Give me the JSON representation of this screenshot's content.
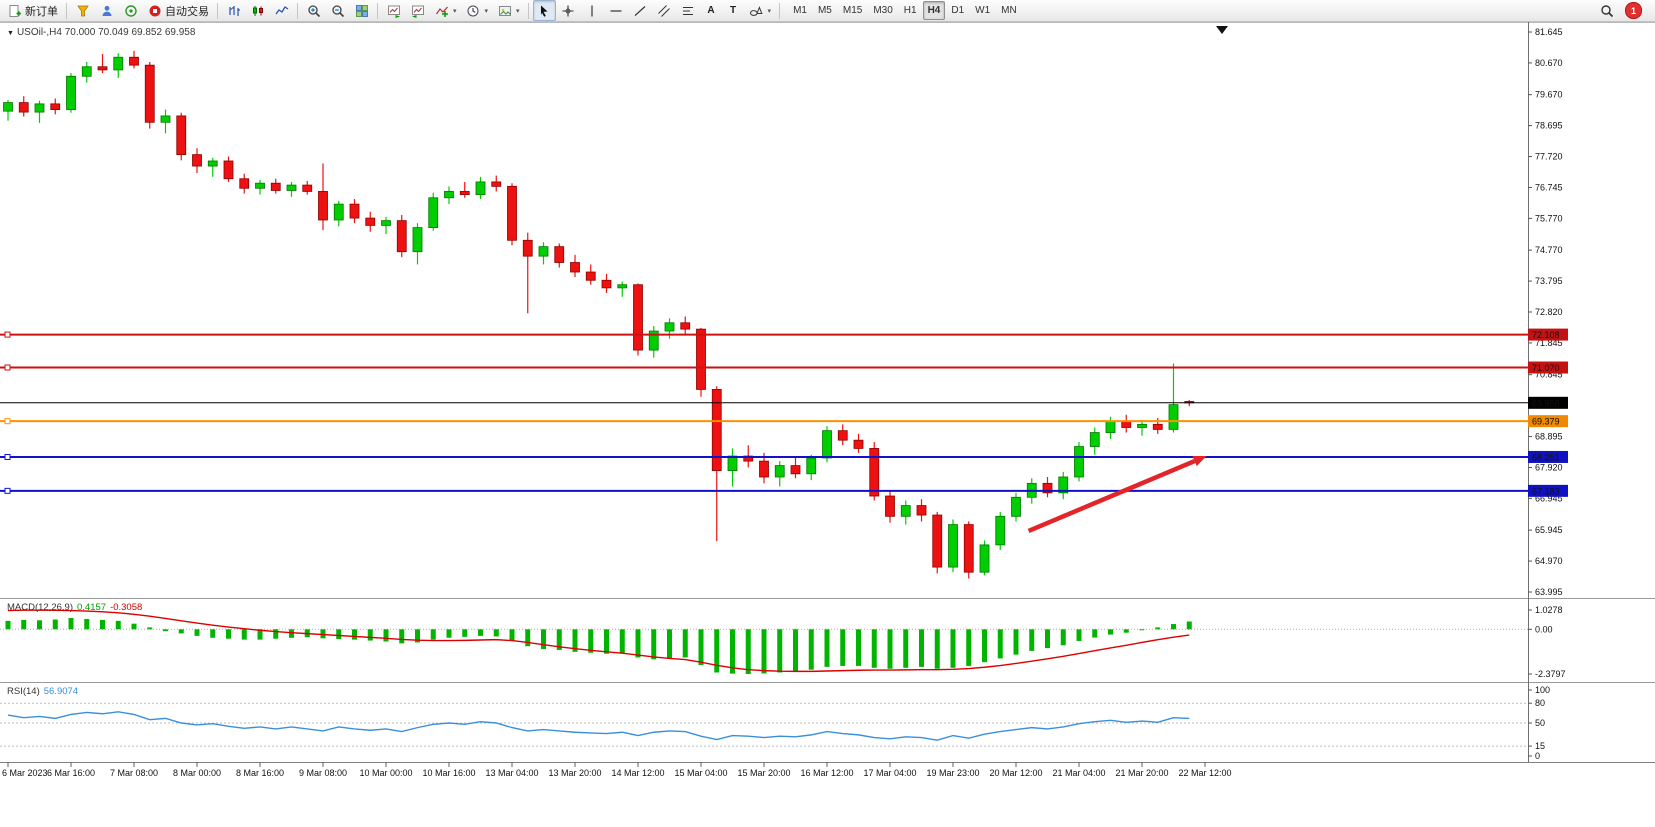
{
  "toolbar": {
    "new_order_label": "新订单",
    "auto_trading_label": "自动交易",
    "text_tool_label": "A",
    "label_tool_label": "T",
    "timeframes": [
      "M1",
      "M5",
      "M15",
      "M30",
      "H1",
      "H4",
      "D1",
      "W1",
      "MN"
    ],
    "active_timeframe": "H4",
    "notification_badge": "1",
    "icon_names": [
      "new-order",
      "funnel",
      "accounts",
      "community",
      "auto-trading",
      "bar-chart",
      "candlestick-chart",
      "line-chart",
      "zoom-in",
      "zoom-out",
      "tile-windows",
      "auto-scroll",
      "chart-shift",
      "indicators",
      "periods",
      "templates",
      "cursor",
      "crosshair",
      "vertical-line",
      "horizontal-line",
      "trendline",
      "equidistant-channel",
      "fibonacci",
      "text",
      "text-label",
      "shapes",
      "search",
      "notifications"
    ]
  },
  "chart": {
    "title": "USOil-,H4 70.000 70.049 69.852 69.958",
    "y_axis": {
      "max": 81.645,
      "min": 63.995
    },
    "price_axis_labels": [
      "81.645",
      "80.670",
      "79.670",
      "78.695",
      "77.720",
      "76.745",
      "75.770",
      "74.770",
      "73.795",
      "72.820",
      "71.845",
      "70.845",
      "68.895",
      "67.920",
      "66.945",
      "65.945",
      "64.970",
      "63.995"
    ],
    "time_axis_labels": [
      "6 Mar 2023",
      "6 Mar 16:00",
      "7 Mar 08:00",
      "8 Mar 00:00",
      "8 Mar 16:00",
      "9 Mar 08:00",
      "10 Mar 00:00",
      "10 Mar 16:00",
      "13 Mar 04:00",
      "13 Mar 20:00",
      "14 Mar 12:00",
      "15 Mar 04:00",
      "15 Mar 20:00",
      "16 Mar 12:00",
      "17 Mar 04:00",
      "19 Mar 23:00",
      "20 Mar 12:00",
      "21 Mar 04:00",
      "21 Mar 20:00",
      "22 Mar 12:00"
    ],
    "hlines": [
      {
        "price": 72.108,
        "label": "72.108",
        "color": "#cc1111",
        "badge": "#c41111",
        "width": 2
      },
      {
        "price": 71.07,
        "label": "71.070",
        "color": "#cc1111",
        "badge": "#c41111",
        "width": 2
      },
      {
        "price": 69.958,
        "label": "69.958",
        "color": "#000000",
        "badge": "#000000",
        "width": 1
      },
      {
        "price": 69.379,
        "label": "69.379",
        "color": "#ff9000",
        "badge": "#f08800",
        "width": 2
      },
      {
        "price": 68.251,
        "label": "68.251",
        "color": "#1111cc",
        "badge": "#1111c4",
        "width": 2
      },
      {
        "price": 67.183,
        "label": "67.183",
        "color": "#1111cc",
        "badge": "#1111c4",
        "width": 2
      }
    ]
  },
  "chart_data": {
    "type": "candlestick",
    "symbol": "USOil-",
    "period": "H4",
    "title": "USOil-,H4",
    "ohlc_current": {
      "open": "70.000",
      "high": "70.049",
      "low": "69.852",
      "close": "69.958"
    },
    "x_label_step": 4,
    "colors": {
      "up": "#00ce00",
      "up_stroke": "#007800",
      "down": "#ee1111",
      "down_stroke": "#8e0000",
      "macd_hist": "#00b400",
      "macd_signal": "#dd0000",
      "rsi_line": "#3a8fdd",
      "arrow": "#e32428"
    },
    "candles": [
      [
        79.15,
        79.5,
        78.85,
        79.42
      ],
      [
        79.42,
        79.62,
        78.98,
        79.12
      ],
      [
        79.12,
        79.48,
        78.78,
        79.38
      ],
      [
        79.38,
        79.55,
        79.05,
        79.2
      ],
      [
        79.2,
        80.35,
        79.1,
        80.25
      ],
      [
        80.25,
        80.7,
        80.05,
        80.55
      ],
      [
        80.55,
        80.95,
        80.35,
        80.45
      ],
      [
        80.45,
        80.98,
        80.2,
        80.85
      ],
      [
        80.85,
        81.05,
        80.5,
        80.6
      ],
      [
        80.6,
        80.7,
        78.6,
        78.8
      ],
      [
        78.8,
        79.2,
        78.45,
        79.0
      ],
      [
        79.0,
        79.1,
        77.6,
        77.78
      ],
      [
        77.78,
        77.98,
        77.2,
        77.42
      ],
      [
        77.42,
        77.68,
        77.08,
        77.58
      ],
      [
        77.58,
        77.72,
        76.92,
        77.02
      ],
      [
        77.02,
        77.18,
        76.55,
        76.72
      ],
      [
        76.72,
        76.98,
        76.52,
        76.88
      ],
      [
        76.88,
        77.02,
        76.55,
        76.65
      ],
      [
        76.65,
        76.92,
        76.45,
        76.82
      ],
      [
        76.82,
        76.95,
        76.52,
        76.62
      ],
      [
        76.62,
        77.5,
        75.4,
        75.72
      ],
      [
        75.72,
        76.32,
        75.52,
        76.22
      ],
      [
        76.22,
        76.38,
        75.62,
        75.78
      ],
      [
        75.78,
        75.98,
        75.35,
        75.55
      ],
      [
        75.55,
        75.82,
        75.28,
        75.7
      ],
      [
        75.7,
        75.88,
        74.55,
        74.72
      ],
      [
        74.72,
        75.62,
        74.32,
        75.48
      ],
      [
        75.48,
        76.58,
        75.38,
        76.42
      ],
      [
        76.42,
        76.78,
        76.22,
        76.62
      ],
      [
        76.62,
        76.92,
        76.42,
        76.52
      ],
      [
        76.52,
        77.08,
        76.38,
        76.92
      ],
      [
        76.92,
        77.12,
        76.62,
        76.78
      ],
      [
        76.78,
        76.88,
        74.92,
        75.08
      ],
      [
        75.08,
        75.32,
        72.78,
        74.58
      ],
      [
        74.58,
        75.02,
        74.32,
        74.88
      ],
      [
        74.88,
        74.98,
        74.22,
        74.38
      ],
      [
        74.38,
        74.62,
        73.92,
        74.08
      ],
      [
        74.08,
        74.32,
        73.68,
        73.82
      ],
      [
        73.82,
        74.02,
        73.42,
        73.58
      ],
      [
        73.58,
        73.78,
        73.3,
        73.68
      ],
      [
        73.68,
        73.72,
        71.45,
        71.62
      ],
      [
        71.62,
        72.38,
        71.38,
        72.22
      ],
      [
        72.22,
        72.62,
        71.98,
        72.48
      ],
      [
        72.48,
        72.68,
        72.12,
        72.28
      ],
      [
        72.28,
        72.32,
        70.15,
        70.38
      ],
      [
        70.38,
        70.48,
        65.6,
        67.82
      ],
      [
        67.82,
        68.52,
        67.32,
        68.28
      ],
      [
        68.28,
        68.62,
        67.92,
        68.12
      ],
      [
        68.12,
        68.38,
        67.42,
        67.62
      ],
      [
        67.62,
        68.12,
        67.32,
        67.98
      ],
      [
        67.98,
        68.22,
        67.58,
        67.72
      ],
      [
        67.72,
        68.32,
        67.52,
        68.22
      ],
      [
        68.22,
        69.22,
        68.08,
        69.08
      ],
      [
        69.08,
        69.28,
        68.62,
        68.78
      ],
      [
        68.78,
        68.98,
        68.38,
        68.52
      ],
      [
        68.52,
        68.72,
        66.88,
        67.02
      ],
      [
        67.02,
        67.18,
        66.18,
        66.38
      ],
      [
        66.38,
        66.88,
        66.12,
        66.72
      ],
      [
        66.72,
        66.92,
        66.22,
        66.42
      ],
      [
        66.42,
        66.52,
        64.58,
        64.78
      ],
      [
        64.78,
        66.28,
        64.62,
        66.12
      ],
      [
        66.12,
        66.22,
        64.42,
        64.62
      ],
      [
        64.62,
        65.62,
        64.52,
        65.48
      ],
      [
        65.48,
        66.52,
        65.32,
        66.38
      ],
      [
        66.38,
        67.12,
        66.22,
        66.98
      ],
      [
        66.98,
        67.58,
        66.78,
        67.42
      ],
      [
        67.42,
        67.62,
        66.98,
        67.12
      ],
      [
        67.12,
        67.78,
        66.92,
        67.62
      ],
      [
        67.62,
        68.72,
        67.48,
        68.58
      ],
      [
        68.58,
        69.18,
        68.32,
        69.02
      ],
      [
        69.02,
        69.52,
        68.82,
        69.38
      ],
      [
        69.38,
        69.58,
        69.02,
        69.18
      ],
      [
        69.18,
        69.42,
        68.92,
        69.28
      ],
      [
        69.28,
        69.48,
        68.98,
        69.12
      ],
      [
        69.12,
        71.2,
        69.02,
        69.9
      ],
      [
        70.0,
        70.049,
        69.852,
        69.958
      ]
    ],
    "indicators": {
      "macd": {
        "name": "MACD(12,26,9)",
        "value": "0.4157",
        "signal_value": "-0.3058",
        "max": 1.0278,
        "min": -2.3797,
        "axis_labels": [
          "1.0278",
          "0.00",
          "-2.3797"
        ],
        "axis_values": [
          1.0278,
          0,
          -2.3797
        ],
        "histogram": [
          0.45,
          0.5,
          0.48,
          0.52,
          0.6,
          0.55,
          0.5,
          0.45,
          0.3,
          0.1,
          -0.1,
          -0.22,
          -0.35,
          -0.45,
          -0.5,
          -0.55,
          -0.55,
          -0.5,
          -0.45,
          -0.42,
          -0.48,
          -0.52,
          -0.55,
          -0.6,
          -0.65,
          -0.75,
          -0.7,
          -0.55,
          -0.45,
          -0.4,
          -0.35,
          -0.38,
          -0.6,
          -0.9,
          -1.05,
          -1.1,
          -1.2,
          -1.25,
          -1.3,
          -1.28,
          -1.5,
          -1.6,
          -1.55,
          -1.5,
          -1.9,
          -2.3,
          -2.36,
          -2.38,
          -2.35,
          -2.3,
          -2.25,
          -2.15,
          -2.0,
          -1.95,
          -1.95,
          -2.05,
          -2.1,
          -2.05,
          -2.0,
          -2.1,
          -2.05,
          -1.95,
          -1.75,
          -1.55,
          -1.35,
          -1.15,
          -1.0,
          -0.85,
          -0.62,
          -0.44,
          -0.28,
          -0.18,
          -0.05,
          0.1,
          0.28,
          0.4157
        ],
        "signal": [
          1.0,
          1.02,
          1.02,
          1.01,
          1.0,
          0.97,
          0.93,
          0.88,
          0.8,
          0.7,
          0.58,
          0.45,
          0.33,
          0.22,
          0.12,
          0.03,
          -0.05,
          -0.12,
          -0.18,
          -0.23,
          -0.28,
          -0.33,
          -0.38,
          -0.43,
          -0.48,
          -0.54,
          -0.58,
          -0.6,
          -0.6,
          -0.59,
          -0.57,
          -0.55,
          -0.6,
          -0.7,
          -0.82,
          -0.93,
          -1.03,
          -1.12,
          -1.2,
          -1.27,
          -1.37,
          -1.47,
          -1.55,
          -1.61,
          -1.75,
          -1.92,
          -2.05,
          -2.15,
          -2.2,
          -2.23,
          -2.24,
          -2.24,
          -2.22,
          -2.2,
          -2.18,
          -2.17,
          -2.17,
          -2.16,
          -2.15,
          -2.15,
          -2.13,
          -2.09,
          -2.02,
          -1.93,
          -1.82,
          -1.7,
          -1.57,
          -1.44,
          -1.29,
          -1.14,
          -0.99,
          -0.85,
          -0.7,
          -0.55,
          -0.42,
          -0.3058
        ]
      },
      "rsi": {
        "name": "RSI(14)",
        "value": "56.9074",
        "axis_labels": [
          "100",
          "80",
          "50",
          "15",
          "0"
        ],
        "axis_values": [
          100,
          80,
          50,
          15,
          0
        ],
        "levels": [
          80,
          50,
          15
        ],
        "series": [
          62,
          58,
          60,
          57,
          63,
          66,
          64,
          67,
          63,
          55,
          57,
          50,
          47,
          49,
          45,
          42,
          44,
          41,
          44,
          41,
          38,
          44,
          41,
          39,
          41,
          37,
          43,
          48,
          50,
          48,
          52,
          50,
          43,
          38,
          40,
          38,
          36,
          35,
          34,
          36,
          31,
          36,
          38,
          37,
          30,
          25,
          31,
          30,
          28,
          30,
          29,
          32,
          37,
          34,
          32,
          28,
          26,
          29,
          28,
          24,
          31,
          27,
          33,
          37,
          40,
          43,
          41,
          44,
          49,
          52,
          54,
          51,
          53,
          51,
          58,
          56.9
        ]
      }
    },
    "annotations": {
      "trend_arrow": {
        "from_bar": 64.8,
        "from_price": 65.92,
        "to_bar": 76.1,
        "to_price": 68.28,
        "color": "#e32428"
      }
    }
  }
}
